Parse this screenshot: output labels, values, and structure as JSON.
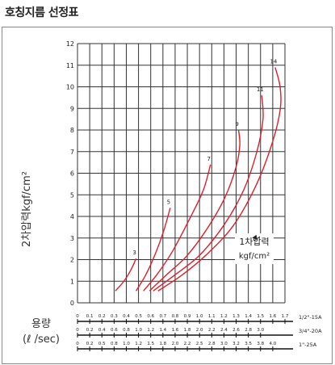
{
  "page_title": "호칭지름 선정표",
  "chart_data": {
    "type": "line",
    "title": "",
    "ylabel": "2차압력kgf/cm²",
    "xlabel_lines": [
      "용량",
      "(ℓ /sec)"
    ],
    "ylim": [
      0,
      12
    ],
    "yticks": [
      "0",
      "1",
      "2",
      "3",
      "4",
      "5",
      "6",
      "7",
      "8",
      "9",
      "10",
      "11",
      "12"
    ],
    "grid": true,
    "x_axes": [
      {
        "name": "1/2\"-15A",
        "xlim": [
          0,
          1.7
        ],
        "ticks": [
          "0",
          "0.1",
          "0.2",
          "0.3",
          "0.4",
          "0.5",
          "0.6",
          "0.7",
          "0.8",
          "0.9",
          "1.0",
          "1.1",
          "1.2",
          "1.3",
          "1.4",
          "1.5",
          "1.6",
          "1.7"
        ]
      },
      {
        "name": "3/4\"-20A",
        "xlim": [
          0,
          3.4
        ],
        "ticks": [
          "0",
          "0.2",
          "0.4",
          "0.6",
          "0.8",
          "1.0",
          "1.2",
          "1.4",
          "1.6",
          "1.8",
          "2.0",
          "2.2",
          "2.4",
          "2.6",
          "2.8",
          "3.0"
        ]
      },
      {
        "name": "1\"-25A",
        "xlim": [
          0,
          4.25
        ],
        "ticks": [
          "0",
          "0.2",
          "0.5",
          "0.8",
          "1.0",
          "1.2",
          "1.5",
          "1.8",
          "2.0",
          "2.2",
          "2.5",
          "2.8",
          "3.0",
          "3.2",
          "3.5",
          "3.8",
          "4.0"
        ]
      }
    ],
    "series": [
      {
        "name": "3",
        "x": [
          0.31,
          0.38,
          0.44,
          0.48
        ],
        "y": [
          0.55,
          1.0,
          1.55,
          2.05
        ]
      },
      {
        "name": "5",
        "x": [
          0.48,
          0.56,
          0.64,
          0.71,
          0.76
        ],
        "y": [
          0.55,
          1.3,
          2.3,
          3.4,
          4.4
        ]
      },
      {
        "name": "7",
        "x": [
          0.54,
          0.65,
          0.78,
          0.92,
          1.03,
          1.09
        ],
        "y": [
          0.55,
          1.3,
          2.4,
          3.9,
          5.2,
          6.4
        ]
      },
      {
        "name": "9",
        "x": [
          0.59,
          0.73,
          0.9,
          1.07,
          1.21,
          1.3,
          1.33,
          1.32
        ],
        "y": [
          0.55,
          1.3,
          2.2,
          3.5,
          4.9,
          6.3,
          7.3,
          8.0
        ]
      },
      {
        "name": "11",
        "x": [
          0.62,
          0.8,
          1.0,
          1.2,
          1.36,
          1.47,
          1.52,
          1.51
        ],
        "y": [
          0.55,
          1.3,
          2.2,
          3.6,
          5.2,
          7.0,
          8.5,
          9.6
        ]
      },
      {
        "name": "14",
        "x": [
          0.66,
          0.86,
          1.07,
          1.28,
          1.46,
          1.59,
          1.66,
          1.66,
          1.62
        ],
        "y": [
          0.55,
          1.3,
          2.3,
          3.6,
          5.4,
          7.3,
          8.9,
          10.0,
          10.9
        ]
      }
    ],
    "annotation": {
      "lines": [
        "1차압력",
        "kgf/cm²"
      ],
      "arrow_to": [
        1.43,
        3.0
      ]
    }
  }
}
